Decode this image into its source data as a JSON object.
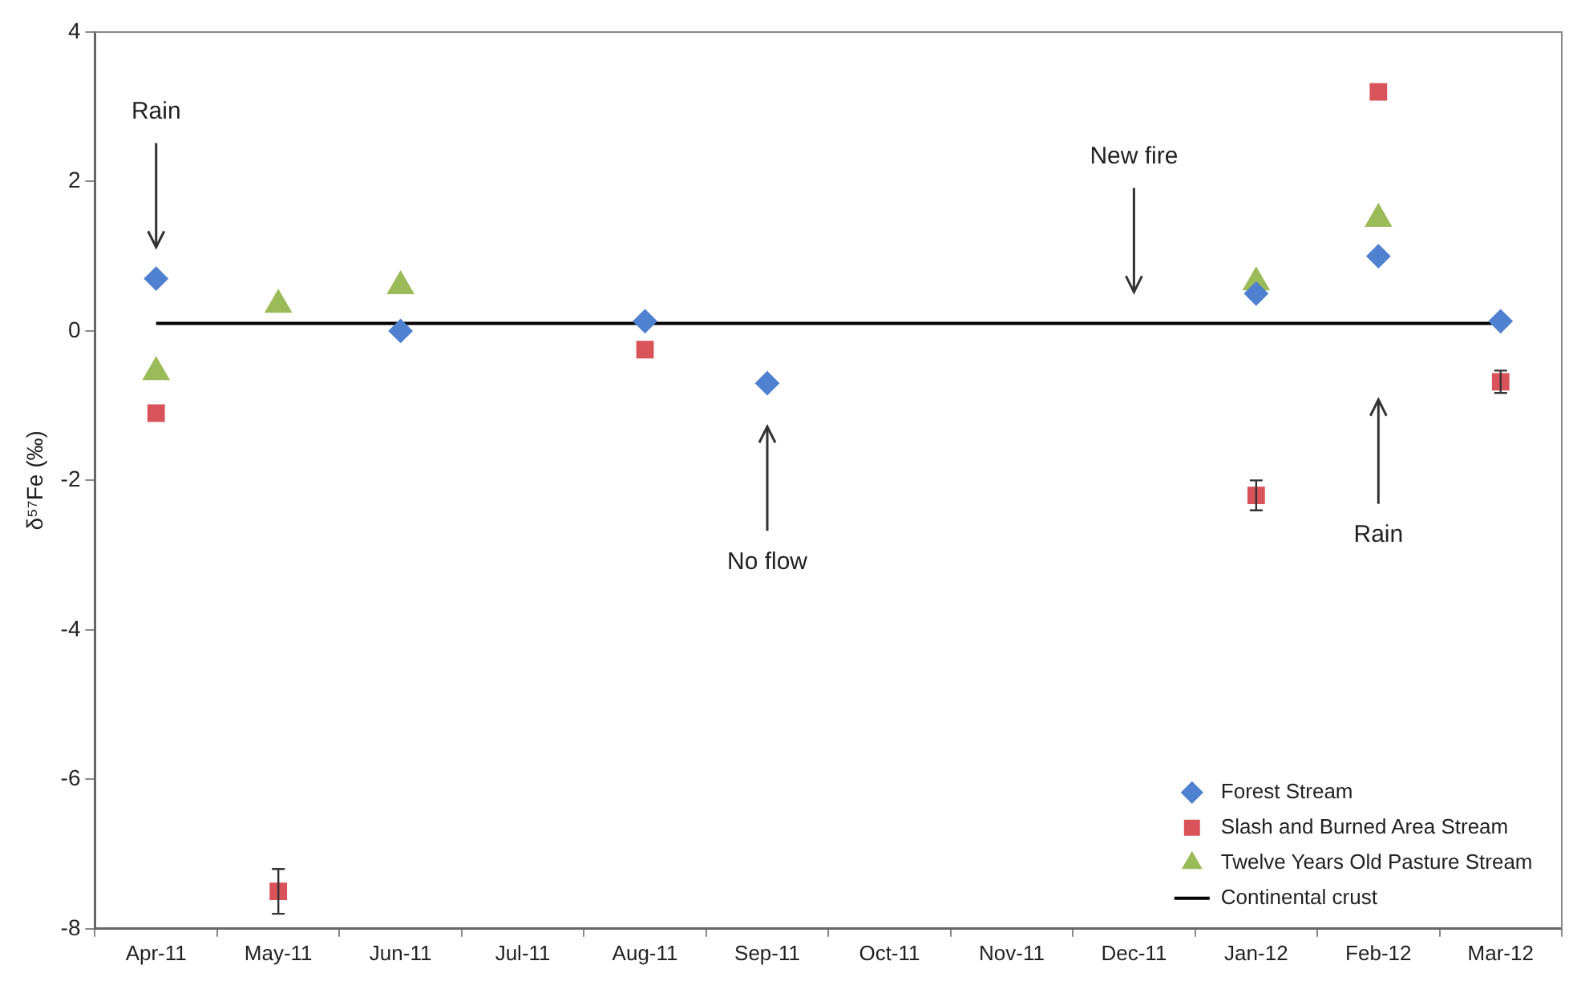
{
  "chart_data": {
    "type": "scatter",
    "ylabel": "δ⁵⁷Fe (‰)",
    "categories": [
      "Apr-11",
      "May-11",
      "Jun-11",
      "Jul-11",
      "Aug-11",
      "Sep-11",
      "Oct-11",
      "Nov-11",
      "Dec-11",
      "Jan-12",
      "Feb-12",
      "Mar-12"
    ],
    "ylim": [
      -8,
      4
    ],
    "yticks": [
      -8,
      -6,
      -4,
      -2,
      0,
      2,
      4
    ],
    "grid": false,
    "legend": "bottom right",
    "series": [
      {
        "name": "Forest Stream",
        "color": "#4f81d0",
        "marker": "diamond",
        "values": [
          0.7,
          null,
          0.0,
          null,
          0.13,
          -0.7,
          null,
          null,
          null,
          0.5,
          1.0,
          0.13
        ]
      },
      {
        "name": "Slash and Burned Area Stream",
        "color": "#d9535a",
        "marker": "square",
        "values": [
          -1.1,
          -7.5,
          null,
          null,
          -0.25,
          null,
          null,
          null,
          null,
          -2.2,
          3.2,
          -0.68
        ],
        "errors": [
          null,
          0.3,
          null,
          null,
          null,
          null,
          null,
          null,
          null,
          0.2,
          null,
          0.15
        ]
      },
      {
        "name": "Twelve Years Old Pasture Stream",
        "color": "#9bbb59",
        "marker": "triangle",
        "values": [
          -0.55,
          0.35,
          0.6,
          null,
          null,
          null,
          null,
          null,
          null,
          0.65,
          1.5,
          null
        ]
      },
      {
        "name": "Continental crust",
        "type": "line",
        "color": "#000000",
        "marker": "none",
        "line_style": "solid",
        "values": [
          0.1,
          0.1,
          0.1,
          0.1,
          0.1,
          0.1,
          0.1,
          0.1,
          0.1,
          0.1,
          0.1,
          0.1
        ]
      }
    ],
    "annotations": [
      "Rain",
      "New fire",
      "No flow",
      "Rain"
    ]
  }
}
